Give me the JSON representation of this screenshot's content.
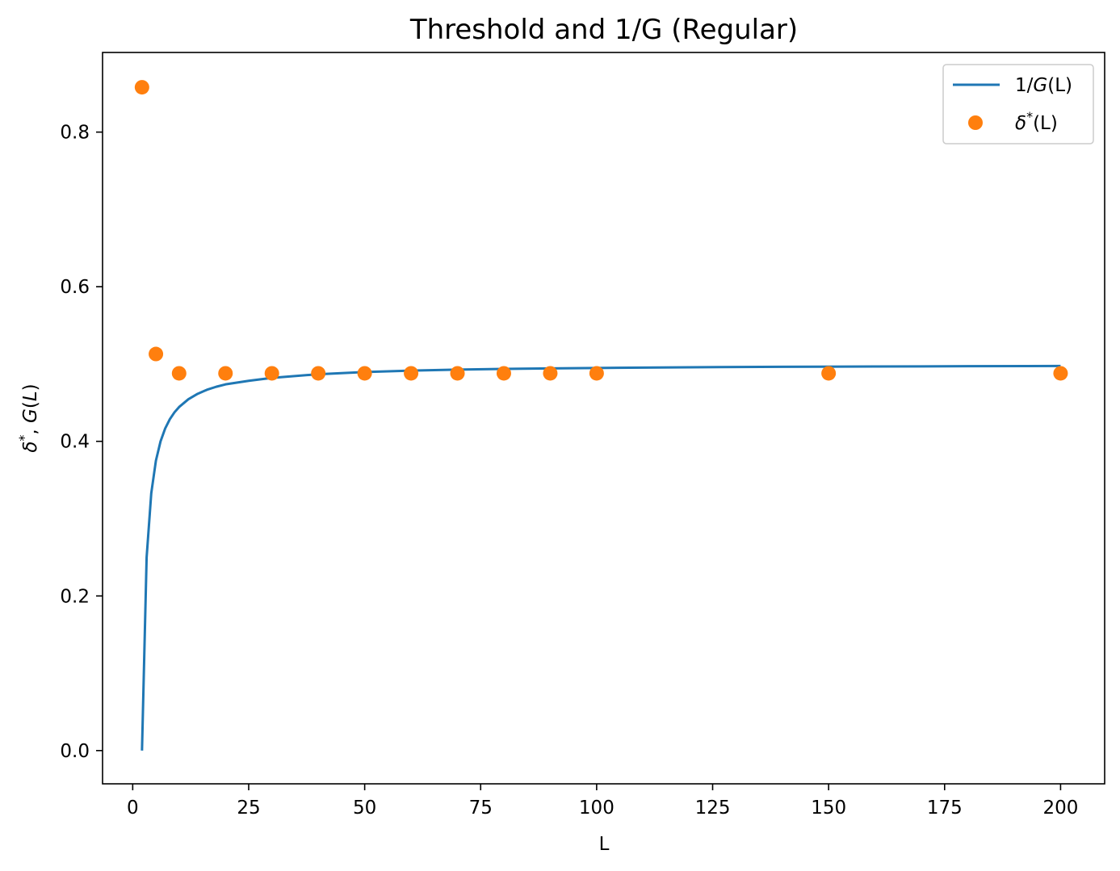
{
  "chart_data": {
    "type": "line",
    "title": "Threshold and 1/G (Regular)",
    "xlabel": "L",
    "ylabel": "δ*, G(L)",
    "xlim": [
      -6.5,
      209.5
    ],
    "ylim": [
      -0.043,
      0.903
    ],
    "x_ticks": [
      0,
      25,
      50,
      75,
      100,
      125,
      150,
      175,
      200
    ],
    "x_tick_labels": [
      "0",
      "25",
      "50",
      "75",
      "100",
      "125",
      "150",
      "175",
      "200"
    ],
    "y_ticks": [
      0.0,
      0.2,
      0.4,
      0.6,
      0.8
    ],
    "y_tick_labels": [
      "0.0",
      "0.2",
      "0.4",
      "0.6",
      "0.8"
    ],
    "grid": false,
    "legend_position": "top-right",
    "series": [
      {
        "name": "1/G(L)",
        "kind": "line",
        "color": "#1f77b4",
        "x": [
          2,
          3,
          4,
          5,
          6,
          7,
          8,
          9,
          10,
          12,
          14,
          16,
          18,
          20,
          25,
          30,
          40,
          50,
          60,
          70,
          80,
          90,
          100,
          120,
          140,
          160,
          180,
          200
        ],
        "y": [
          0.0,
          0.25,
          0.333,
          0.375,
          0.4,
          0.4167,
          0.4286,
          0.4375,
          0.4444,
          0.4545,
          0.4615,
          0.4667,
          0.4706,
          0.4737,
          0.4783,
          0.4821,
          0.4868,
          0.4896,
          0.4915,
          0.4928,
          0.4937,
          0.4944,
          0.4949,
          0.4958,
          0.4964,
          0.4968,
          0.4972,
          0.4975
        ]
      },
      {
        "name": "δ*(L)",
        "kind": "scatter",
        "color": "#ff7f0e",
        "x": [
          2,
          5,
          10,
          20,
          30,
          40,
          50,
          60,
          70,
          80,
          90,
          100,
          150,
          200
        ],
        "y": [
          0.858,
          0.513,
          0.488,
          0.488,
          0.488,
          0.488,
          0.488,
          0.488,
          0.488,
          0.488,
          0.488,
          0.488,
          0.488,
          0.488
        ]
      }
    ]
  },
  "legend": {
    "items": [
      {
        "label_prefix": "1/",
        "label_var": "G",
        "label_suffix": "(L)"
      },
      {
        "label_prefix": "δ",
        "label_sup": "*",
        "label_suffix": "(L)"
      }
    ]
  }
}
